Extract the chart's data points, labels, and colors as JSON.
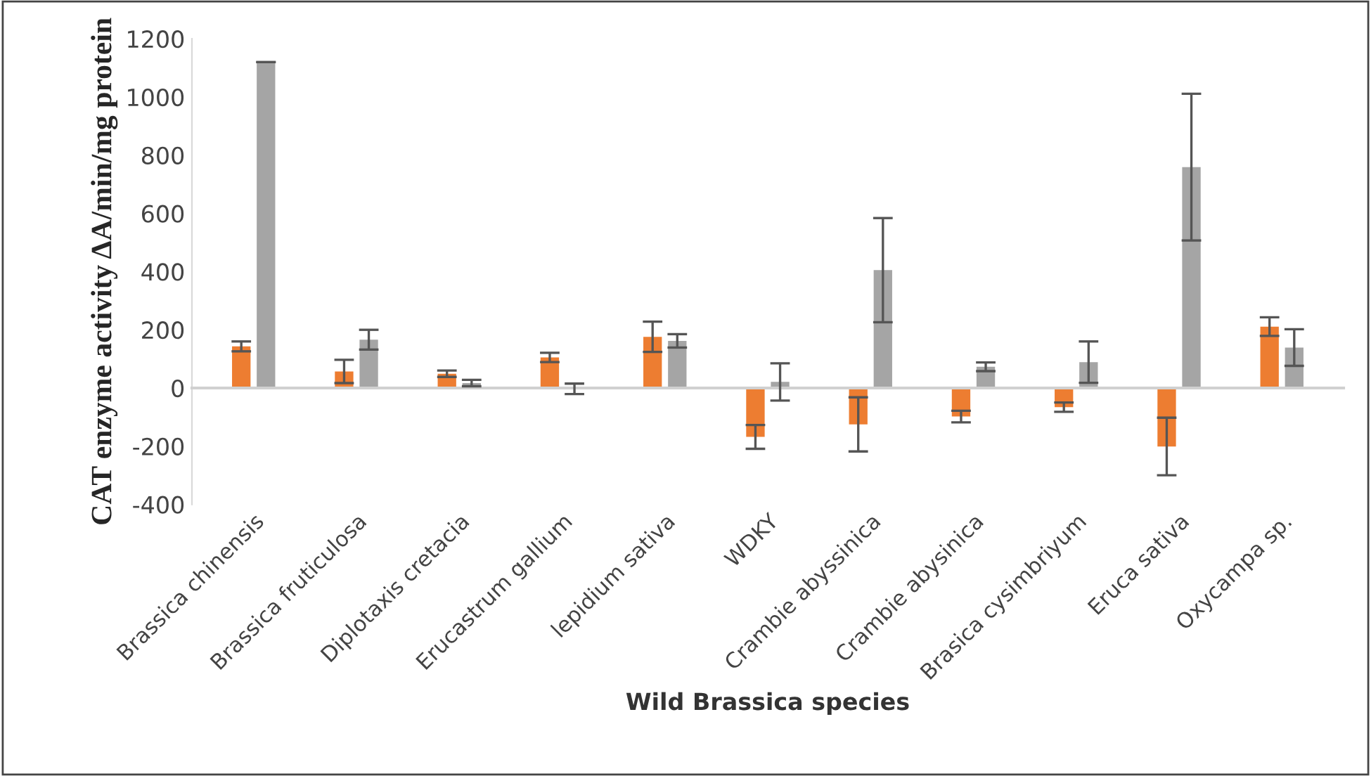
{
  "chart_data": {
    "type": "bar",
    "xlabel": "Wild Brassica species",
    "ylabel": "CAT enzyme activity ΔA/min/mg protein",
    "categories": [
      "Brassica chinensis",
      "Brassica fruticulosa",
      "Diplotaxis cretacia",
      "Erucastrum gallium",
      "lepidium sativa",
      "WDKY",
      "Crambie abyssinica",
      "Crambie abysinica",
      "Brasica cysimbriyum",
      "Eruca sativa",
      "Oxycampa sp."
    ],
    "series": [
      {
        "color": "#ed7d31",
        "values": [
          143,
          57,
          49,
          105,
          176,
          -168,
          -125,
          -98,
          -66,
          -201,
          211
        ],
        "errors": [
          17,
          40,
          11,
          16,
          52,
          41,
          93,
          20,
          16,
          99,
          32
        ]
      },
      {
        "color": "#a5a5a5",
        "values": [
          1120,
          166,
          17,
          -3,
          162,
          21,
          405,
          73,
          89,
          759,
          139
        ],
        "errors": [
          0,
          34,
          11,
          18,
          23,
          64,
          179,
          15,
          71,
          252,
          63
        ]
      }
    ],
    "ylim": [
      -400,
      1200
    ],
    "yticks": [
      -400,
      -200,
      0,
      200,
      400,
      600,
      800,
      1000,
      1200
    ]
  }
}
